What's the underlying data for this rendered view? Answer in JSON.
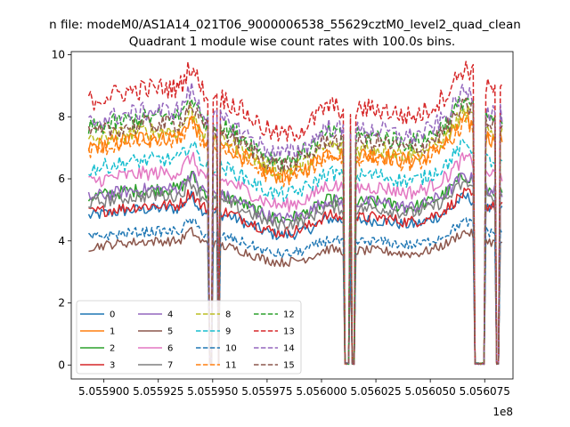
{
  "chart_data": {
    "type": "line",
    "suptitle": "n file: modeM0/AS1A14_021T06_9000006538_55629cztM0_level2_quad_clean",
    "title": "Quadrant 1 module wise count rates with 100.0s bins.",
    "xlabel": "",
    "ylabel": "",
    "offset_text": "1e8",
    "xlim": [
      505588.5,
      505608.8
    ],
    "ylim": [
      -0.45,
      10.1
    ],
    "x_ticks": [
      505590.0,
      505592.5,
      505595.0,
      505597.5,
      505600.0,
      505602.5,
      505605.0,
      505607.5
    ],
    "x_tick_labels": [
      "5.055900",
      "5.055925",
      "5.055950",
      "5.055975",
      "5.056000",
      "5.056025",
      "5.056050",
      "5.056075"
    ],
    "y_ticks": [
      0,
      2,
      4,
      6,
      8,
      10
    ],
    "y_tick_labels": [
      "0",
      "2",
      "4",
      "6",
      "8",
      "10"
    ],
    "x_start": 505589.3,
    "x_end": 505608.3,
    "gaps": [
      [
        505594.8,
        505595.0
      ],
      [
        505595.2,
        505595.3
      ],
      [
        505601.0,
        505601.3
      ],
      [
        505601.4,
        505601.5
      ],
      [
        505607.0,
        505607.5
      ],
      [
        505608.0,
        505608.15
      ]
    ],
    "legend_position": "lower-left",
    "legend_columns": 4,
    "series": [
      {
        "name": "0",
        "color": "#1f77b4",
        "dash": "solid",
        "base": 4.8
      },
      {
        "name": "1",
        "color": "#ff7f0e",
        "dash": "solid",
        "base": 7.0
      },
      {
        "name": "2",
        "color": "#2ca02c",
        "dash": "solid",
        "base": 5.4
      },
      {
        "name": "3",
        "color": "#d62728",
        "dash": "solid",
        "base": 4.9
      },
      {
        "name": "4",
        "color": "#9467bd",
        "dash": "solid",
        "base": 5.4
      },
      {
        "name": "5",
        "color": "#8c564b",
        "dash": "solid",
        "base": 3.8
      },
      {
        "name": "6",
        "color": "#e377c2",
        "dash": "solid",
        "base": 5.9
      },
      {
        "name": "7",
        "color": "#7f7f7f",
        "dash": "solid",
        "base": 5.2
      },
      {
        "name": "8",
        "color": "#bcbd22",
        "dash": "dashed",
        "base": 7.2
      },
      {
        "name": "9",
        "color": "#17becf",
        "dash": "dashed",
        "base": 6.3
      },
      {
        "name": "10",
        "color": "#1f77b4",
        "dash": "dashed",
        "base": 4.1
      },
      {
        "name": "11",
        "color": "#ff7f0e",
        "dash": "dashed",
        "base": 6.9
      },
      {
        "name": "12",
        "color": "#2ca02c",
        "dash": "dashed",
        "base": 7.6
      },
      {
        "name": "13",
        "color": "#d62728",
        "dash": "dashed",
        "base": 8.5
      },
      {
        "name": "14",
        "color": "#9467bd",
        "dash": "dashed",
        "base": 7.8
      },
      {
        "name": "15",
        "color": "#8c564b",
        "dash": "dashed",
        "base": 7.4
      }
    ]
  }
}
